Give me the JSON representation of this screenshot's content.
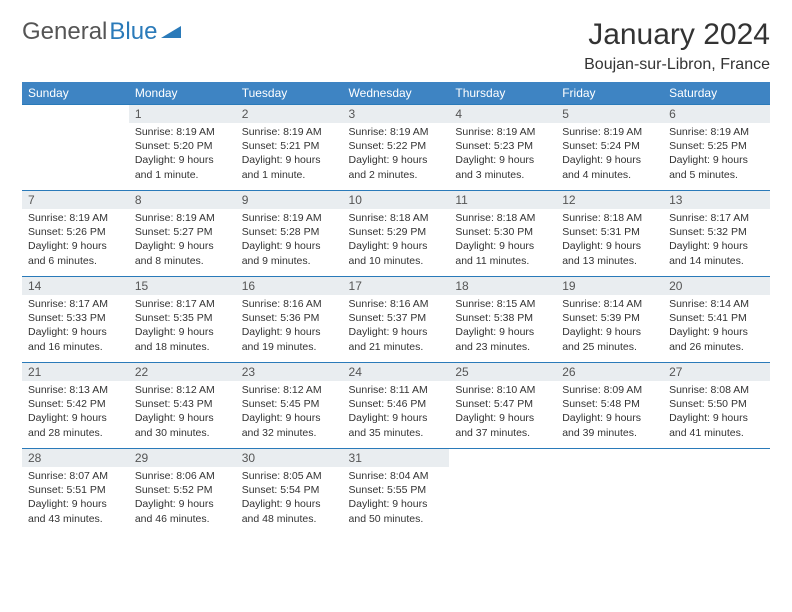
{
  "logo": {
    "part1": "General",
    "part2": "Blue"
  },
  "title": "January 2024",
  "location": "Boujan-sur-Libron, France",
  "colors": {
    "header_bg": "#3e84c3",
    "header_text": "#ffffff",
    "daynum_bg": "#e9edf0",
    "row_border": "#2a7ab9",
    "logo_gray": "#555555",
    "logo_blue": "#2a7ab9"
  },
  "day_headers": [
    "Sunday",
    "Monday",
    "Tuesday",
    "Wednesday",
    "Thursday",
    "Friday",
    "Saturday"
  ],
  "weeks": [
    [
      {
        "empty": true
      },
      {
        "num": "1",
        "sunrise": "Sunrise: 8:19 AM",
        "sunset": "Sunset: 5:20 PM",
        "daylight1": "Daylight: 9 hours",
        "daylight2": "and 1 minute."
      },
      {
        "num": "2",
        "sunrise": "Sunrise: 8:19 AM",
        "sunset": "Sunset: 5:21 PM",
        "daylight1": "Daylight: 9 hours",
        "daylight2": "and 1 minute."
      },
      {
        "num": "3",
        "sunrise": "Sunrise: 8:19 AM",
        "sunset": "Sunset: 5:22 PM",
        "daylight1": "Daylight: 9 hours",
        "daylight2": "and 2 minutes."
      },
      {
        "num": "4",
        "sunrise": "Sunrise: 8:19 AM",
        "sunset": "Sunset: 5:23 PM",
        "daylight1": "Daylight: 9 hours",
        "daylight2": "and 3 minutes."
      },
      {
        "num": "5",
        "sunrise": "Sunrise: 8:19 AM",
        "sunset": "Sunset: 5:24 PM",
        "daylight1": "Daylight: 9 hours",
        "daylight2": "and 4 minutes."
      },
      {
        "num": "6",
        "sunrise": "Sunrise: 8:19 AM",
        "sunset": "Sunset: 5:25 PM",
        "daylight1": "Daylight: 9 hours",
        "daylight2": "and 5 minutes."
      }
    ],
    [
      {
        "num": "7",
        "sunrise": "Sunrise: 8:19 AM",
        "sunset": "Sunset: 5:26 PM",
        "daylight1": "Daylight: 9 hours",
        "daylight2": "and 6 minutes."
      },
      {
        "num": "8",
        "sunrise": "Sunrise: 8:19 AM",
        "sunset": "Sunset: 5:27 PM",
        "daylight1": "Daylight: 9 hours",
        "daylight2": "and 8 minutes."
      },
      {
        "num": "9",
        "sunrise": "Sunrise: 8:19 AM",
        "sunset": "Sunset: 5:28 PM",
        "daylight1": "Daylight: 9 hours",
        "daylight2": "and 9 minutes."
      },
      {
        "num": "10",
        "sunrise": "Sunrise: 8:18 AM",
        "sunset": "Sunset: 5:29 PM",
        "daylight1": "Daylight: 9 hours",
        "daylight2": "and 10 minutes."
      },
      {
        "num": "11",
        "sunrise": "Sunrise: 8:18 AM",
        "sunset": "Sunset: 5:30 PM",
        "daylight1": "Daylight: 9 hours",
        "daylight2": "and 11 minutes."
      },
      {
        "num": "12",
        "sunrise": "Sunrise: 8:18 AM",
        "sunset": "Sunset: 5:31 PM",
        "daylight1": "Daylight: 9 hours",
        "daylight2": "and 13 minutes."
      },
      {
        "num": "13",
        "sunrise": "Sunrise: 8:17 AM",
        "sunset": "Sunset: 5:32 PM",
        "daylight1": "Daylight: 9 hours",
        "daylight2": "and 14 minutes."
      }
    ],
    [
      {
        "num": "14",
        "sunrise": "Sunrise: 8:17 AM",
        "sunset": "Sunset: 5:33 PM",
        "daylight1": "Daylight: 9 hours",
        "daylight2": "and 16 minutes."
      },
      {
        "num": "15",
        "sunrise": "Sunrise: 8:17 AM",
        "sunset": "Sunset: 5:35 PM",
        "daylight1": "Daylight: 9 hours",
        "daylight2": "and 18 minutes."
      },
      {
        "num": "16",
        "sunrise": "Sunrise: 8:16 AM",
        "sunset": "Sunset: 5:36 PM",
        "daylight1": "Daylight: 9 hours",
        "daylight2": "and 19 minutes."
      },
      {
        "num": "17",
        "sunrise": "Sunrise: 8:16 AM",
        "sunset": "Sunset: 5:37 PM",
        "daylight1": "Daylight: 9 hours",
        "daylight2": "and 21 minutes."
      },
      {
        "num": "18",
        "sunrise": "Sunrise: 8:15 AM",
        "sunset": "Sunset: 5:38 PM",
        "daylight1": "Daylight: 9 hours",
        "daylight2": "and 23 minutes."
      },
      {
        "num": "19",
        "sunrise": "Sunrise: 8:14 AM",
        "sunset": "Sunset: 5:39 PM",
        "daylight1": "Daylight: 9 hours",
        "daylight2": "and 25 minutes."
      },
      {
        "num": "20",
        "sunrise": "Sunrise: 8:14 AM",
        "sunset": "Sunset: 5:41 PM",
        "daylight1": "Daylight: 9 hours",
        "daylight2": "and 26 minutes."
      }
    ],
    [
      {
        "num": "21",
        "sunrise": "Sunrise: 8:13 AM",
        "sunset": "Sunset: 5:42 PM",
        "daylight1": "Daylight: 9 hours",
        "daylight2": "and 28 minutes."
      },
      {
        "num": "22",
        "sunrise": "Sunrise: 8:12 AM",
        "sunset": "Sunset: 5:43 PM",
        "daylight1": "Daylight: 9 hours",
        "daylight2": "and 30 minutes."
      },
      {
        "num": "23",
        "sunrise": "Sunrise: 8:12 AM",
        "sunset": "Sunset: 5:45 PM",
        "daylight1": "Daylight: 9 hours",
        "daylight2": "and 32 minutes."
      },
      {
        "num": "24",
        "sunrise": "Sunrise: 8:11 AM",
        "sunset": "Sunset: 5:46 PM",
        "daylight1": "Daylight: 9 hours",
        "daylight2": "and 35 minutes."
      },
      {
        "num": "25",
        "sunrise": "Sunrise: 8:10 AM",
        "sunset": "Sunset: 5:47 PM",
        "daylight1": "Daylight: 9 hours",
        "daylight2": "and 37 minutes."
      },
      {
        "num": "26",
        "sunrise": "Sunrise: 8:09 AM",
        "sunset": "Sunset: 5:48 PM",
        "daylight1": "Daylight: 9 hours",
        "daylight2": "and 39 minutes."
      },
      {
        "num": "27",
        "sunrise": "Sunrise: 8:08 AM",
        "sunset": "Sunset: 5:50 PM",
        "daylight1": "Daylight: 9 hours",
        "daylight2": "and 41 minutes."
      }
    ],
    [
      {
        "num": "28",
        "sunrise": "Sunrise: 8:07 AM",
        "sunset": "Sunset: 5:51 PM",
        "daylight1": "Daylight: 9 hours",
        "daylight2": "and 43 minutes."
      },
      {
        "num": "29",
        "sunrise": "Sunrise: 8:06 AM",
        "sunset": "Sunset: 5:52 PM",
        "daylight1": "Daylight: 9 hours",
        "daylight2": "and 46 minutes."
      },
      {
        "num": "30",
        "sunrise": "Sunrise: 8:05 AM",
        "sunset": "Sunset: 5:54 PM",
        "daylight1": "Daylight: 9 hours",
        "daylight2": "and 48 minutes."
      },
      {
        "num": "31",
        "sunrise": "Sunrise: 8:04 AM",
        "sunset": "Sunset: 5:55 PM",
        "daylight1": "Daylight: 9 hours",
        "daylight2": "and 50 minutes."
      },
      {
        "empty": true
      },
      {
        "empty": true
      },
      {
        "empty": true
      }
    ]
  ]
}
